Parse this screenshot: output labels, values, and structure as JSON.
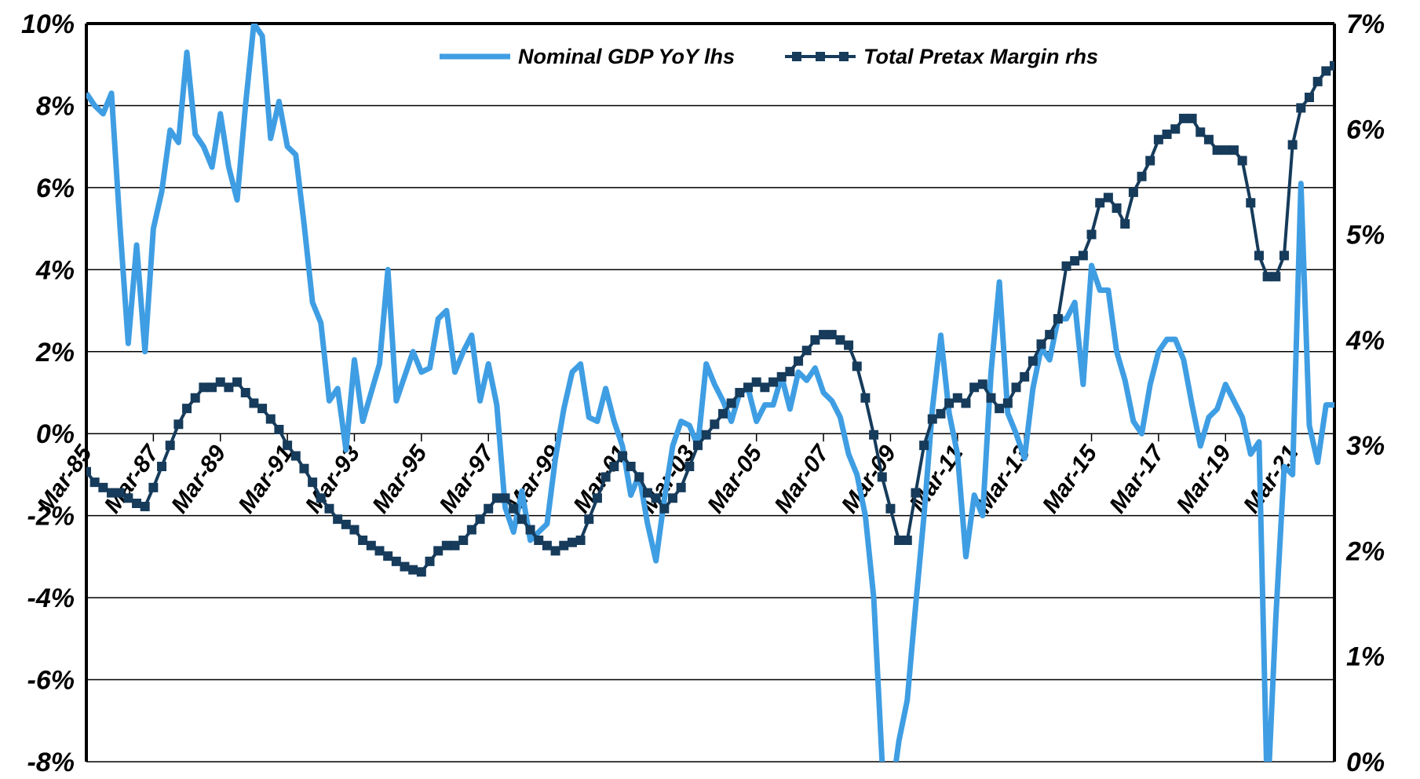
{
  "chart": {
    "type": "dual-axis-line",
    "background_color": "#ffffff",
    "border_color": "#000000",
    "border_width": 4,
    "gridline_color": "#000000",
    "gridline_width": 1.5,
    "axis_label_fontsize": 34,
    "x_tick_fontsize": 30,
    "x_tick_rotation_deg": -55,
    "legend": {
      "fontsize": 27,
      "series1_label": "Nominal GDP YoY lhs",
      "series2_label": "Total Pretax Margin rhs",
      "series1_stroke_color": "#3f9ee3",
      "series1_stroke_width": 7,
      "series2_stroke_color": "#163b5b",
      "series2_stroke_width": 4,
      "series2_marker": "square",
      "series2_marker_size": 12
    },
    "left_axis": {
      "min": -8,
      "max": 10,
      "ticks": [
        -8,
        -6,
        -4,
        -2,
        0,
        2,
        4,
        6,
        8,
        10
      ],
      "tick_labels": [
        "-8%",
        "-6%",
        "-4%",
        "-2%",
        "0%",
        "2%",
        "4%",
        "6%",
        "8%",
        "10%"
      ]
    },
    "right_axis": {
      "min": 0,
      "max": 7,
      "ticks": [
        0,
        1,
        2,
        3,
        4,
        5,
        6,
        7
      ],
      "tick_labels": [
        "0%",
        "1%",
        "2%",
        "3%",
        "4%",
        "5%",
        "6%",
        "7%"
      ]
    },
    "x_axis": {
      "tick_labels": [
        "Mar-85",
        "Mar-87",
        "Mar-89",
        "Mar-91",
        "Mar-93",
        "Mar-95",
        "Mar-97",
        "Mar-99",
        "Mar-01",
        "Mar-03",
        "Mar-05",
        "Mar-07",
        "Mar-09",
        "Mar-11",
        "Mar-13",
        "Mar-15",
        "Mar-17",
        "Mar-19",
        "Mar-21"
      ]
    },
    "x_categories": [
      "Mar-85",
      "Jun-85",
      "Sep-85",
      "Dec-85",
      "Mar-86",
      "Jun-86",
      "Sep-86",
      "Dec-86",
      "Mar-87",
      "Jun-87",
      "Sep-87",
      "Dec-87",
      "Mar-88",
      "Jun-88",
      "Sep-88",
      "Dec-88",
      "Mar-89",
      "Jun-89",
      "Sep-89",
      "Dec-89",
      "Mar-90",
      "Jun-90",
      "Sep-90",
      "Dec-90",
      "Mar-91",
      "Jun-91",
      "Sep-91",
      "Dec-91",
      "Mar-92",
      "Jun-92",
      "Sep-92",
      "Dec-92",
      "Mar-93",
      "Jun-93",
      "Sep-93",
      "Dec-93",
      "Mar-94",
      "Jun-94",
      "Sep-94",
      "Dec-94",
      "Mar-95",
      "Jun-95",
      "Sep-95",
      "Dec-95",
      "Mar-96",
      "Jun-96",
      "Sep-96",
      "Dec-96",
      "Mar-97",
      "Jun-97",
      "Sep-97",
      "Dec-97",
      "Mar-98",
      "Jun-98",
      "Sep-98",
      "Dec-98",
      "Mar-99",
      "Jun-99",
      "Sep-99",
      "Dec-99",
      "Mar-00",
      "Jun-00",
      "Sep-00",
      "Dec-00",
      "Mar-01",
      "Jun-01",
      "Sep-01",
      "Dec-01",
      "Mar-02",
      "Jun-02",
      "Sep-02",
      "Dec-02",
      "Mar-03",
      "Jun-03",
      "Sep-03",
      "Dec-03",
      "Mar-04",
      "Jun-04",
      "Sep-04",
      "Dec-04",
      "Mar-05",
      "Jun-05",
      "Sep-05",
      "Dec-05",
      "Mar-06",
      "Jun-06",
      "Sep-06",
      "Dec-06",
      "Mar-07",
      "Jun-07",
      "Sep-07",
      "Dec-07",
      "Mar-08",
      "Jun-08",
      "Sep-08",
      "Dec-08",
      "Mar-09",
      "Jun-09",
      "Sep-09",
      "Dec-09",
      "Mar-10",
      "Jun-10",
      "Sep-10",
      "Dec-10",
      "Mar-11",
      "Jun-11",
      "Sep-11",
      "Dec-11",
      "Mar-12",
      "Jun-12",
      "Sep-12",
      "Dec-12",
      "Mar-13",
      "Jun-13",
      "Sep-13",
      "Dec-13",
      "Mar-14",
      "Jun-14",
      "Sep-14",
      "Dec-14",
      "Mar-15",
      "Jun-15",
      "Sep-15",
      "Dec-15",
      "Mar-16",
      "Jun-16",
      "Sep-16",
      "Dec-16",
      "Mar-17",
      "Jun-17",
      "Sep-17",
      "Dec-17",
      "Mar-18",
      "Jun-18",
      "Sep-18",
      "Dec-18",
      "Mar-19",
      "Jun-19",
      "Sep-19",
      "Dec-19",
      "Mar-20",
      "Jun-20",
      "Sep-20",
      "Dec-20",
      "Mar-21",
      "Jun-21",
      "Sep-21",
      "Dec-21",
      "Mar-22",
      "Jun-22"
    ],
    "series1_values": [
      8.3,
      8.0,
      7.8,
      8.3,
      5.1,
      2.2,
      4.6,
      2.0,
      5.0,
      5.9,
      7.4,
      7.1,
      9.3,
      7.3,
      7.0,
      6.5,
      7.8,
      6.5,
      5.7,
      8.0,
      10.0,
      9.7,
      7.2,
      8.1,
      7.0,
      6.8,
      5.1,
      3.2,
      2.7,
      0.8,
      1.1,
      -0.4,
      1.8,
      0.3,
      1.0,
      1.7,
      4.0,
      0.8,
      1.4,
      2.0,
      1.5,
      1.6,
      2.8,
      3.0,
      1.5,
      2.0,
      2.4,
      0.8,
      1.7,
      0.7,
      -1.8,
      -2.4,
      -1.4,
      -2.6,
      -2.4,
      -2.2,
      -0.6,
      0.6,
      1.5,
      1.7,
      0.4,
      0.3,
      1.1,
      0.3,
      -0.3,
      -1.5,
      -1.0,
      -2.2,
      -3.1,
      -1.6,
      -0.3,
      0.3,
      0.2,
      -0.3,
      1.7,
      1.2,
      0.8,
      0.3,
      1.0,
      1.1,
      0.3,
      0.7,
      0.7,
      1.4,
      0.6,
      1.5,
      1.3,
      1.6,
      1.0,
      0.8,
      0.4,
      -0.5,
      -1.0,
      -2.0,
      -4.0,
      -8.0,
      -9.0,
      -7.5,
      -6.5,
      -4.2,
      -2.0,
      0.6,
      2.4,
      0.5,
      -0.5,
      -3.0,
      -1.5,
      -2.0,
      1.5,
      3.7,
      0.5,
      0.0,
      -0.6,
      1.1,
      2.1,
      1.8,
      2.8,
      2.8,
      3.2,
      1.2,
      4.1,
      3.5,
      3.5,
      2.0,
      1.3,
      0.3,
      0.0,
      1.2,
      2.0,
      2.3,
      2.3,
      1.8,
      0.7,
      -0.3,
      0.4,
      0.6,
      1.2,
      0.8,
      0.4,
      -0.5,
      -0.2,
      -9.0,
      -4.5,
      -0.8,
      -1.0,
      6.1,
      0.2,
      -0.7,
      0.7,
      0.7
    ],
    "series2_values": [
      2.75,
      2.65,
      2.6,
      2.55,
      2.55,
      2.5,
      2.45,
      2.42,
      2.6,
      2.8,
      3.0,
      3.2,
      3.35,
      3.45,
      3.55,
      3.55,
      3.6,
      3.55,
      3.6,
      3.5,
      3.4,
      3.35,
      3.25,
      3.15,
      3.0,
      2.9,
      2.78,
      2.65,
      2.5,
      2.4,
      2.3,
      2.25,
      2.2,
      2.1,
      2.05,
      2.0,
      1.95,
      1.9,
      1.85,
      1.82,
      1.8,
      1.9,
      2.0,
      2.05,
      2.05,
      2.1,
      2.2,
      2.3,
      2.4,
      2.5,
      2.5,
      2.4,
      2.3,
      2.2,
      2.1,
      2.05,
      2.0,
      2.05,
      2.08,
      2.1,
      2.3,
      2.5,
      2.7,
      2.8,
      2.9,
      2.8,
      2.7,
      2.55,
      2.5,
      2.4,
      2.5,
      2.6,
      2.8,
      3.0,
      3.1,
      3.2,
      3.3,
      3.4,
      3.5,
      3.55,
      3.6,
      3.55,
      3.6,
      3.65,
      3.7,
      3.8,
      3.9,
      4.0,
      4.05,
      4.05,
      4.0,
      3.95,
      3.75,
      3.45,
      3.1,
      2.7,
      2.4,
      2.1,
      2.1,
      2.55,
      3.0,
      3.25,
      3.3,
      3.4,
      3.45,
      3.4,
      3.55,
      3.58,
      3.45,
      3.35,
      3.4,
      3.55,
      3.65,
      3.8,
      3.96,
      4.05,
      4.2,
      4.7,
      4.75,
      4.8,
      5.0,
      5.3,
      5.35,
      5.25,
      5.1,
      5.4,
      5.55,
      5.7,
      5.9,
      5.95,
      6.0,
      6.1,
      6.1,
      5.97,
      5.9,
      5.8,
      5.8,
      5.8,
      5.7,
      5.3,
      4.8,
      4.6,
      4.6,
      4.8,
      5.85,
      6.2,
      6.3,
      6.45,
      6.55,
      6.6
    ]
  }
}
